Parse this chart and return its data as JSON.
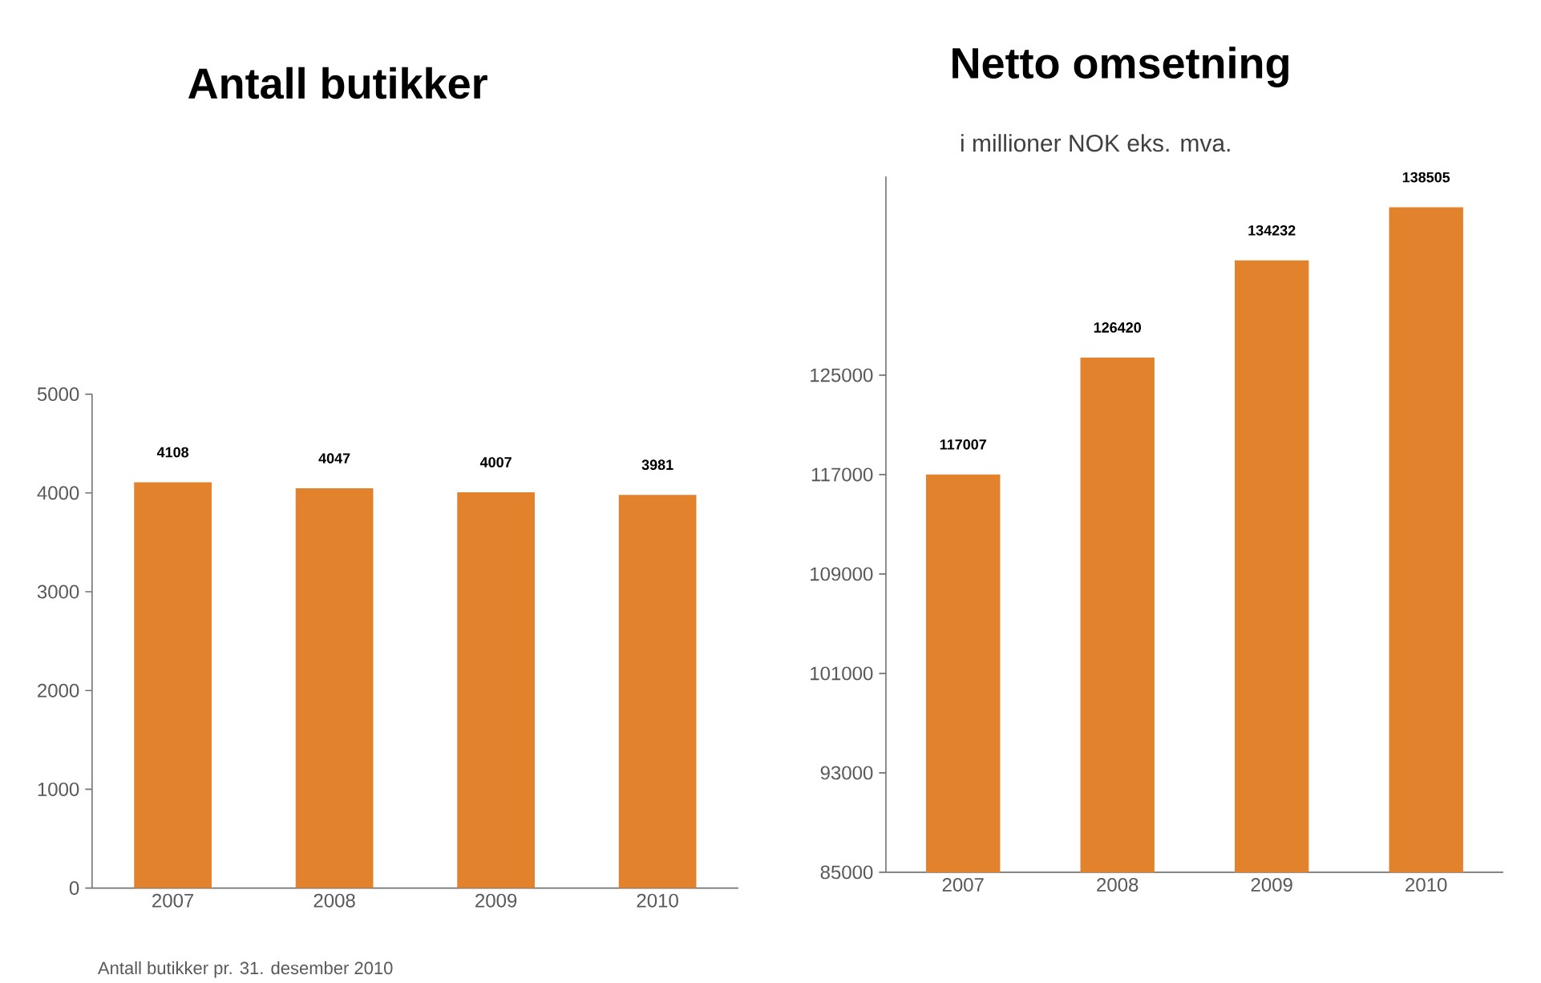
{
  "chart_data": [
    {
      "type": "bar",
      "title": "Antall butikker",
      "categories": [
        "2007",
        "2008",
        "2009",
        "2010"
      ],
      "values": [
        4108,
        4047,
        4007,
        3981
      ],
      "color": "#e3822c",
      "ylim": [
        0,
        5000
      ],
      "yticks": [
        0,
        1000,
        2000,
        3000,
        4000,
        5000
      ],
      "data_labels": true,
      "annotations": [
        "Antall butikker pr. 31. desember 2010"
      ]
    },
    {
      "type": "bar",
      "title": "Netto omsetning",
      "subtitle": "i millioner NOK eks. mva.",
      "categories": [
        "2007",
        "2008",
        "2009",
        "2010"
      ],
      "values": [
        117007,
        126420,
        134232,
        138505
      ],
      "color": "#e3822c",
      "ylim": [
        85000,
        141000
      ],
      "yticks": [
        85000,
        93000,
        101000,
        109000,
        117000,
        125000
      ],
      "data_labels": true
    }
  ]
}
